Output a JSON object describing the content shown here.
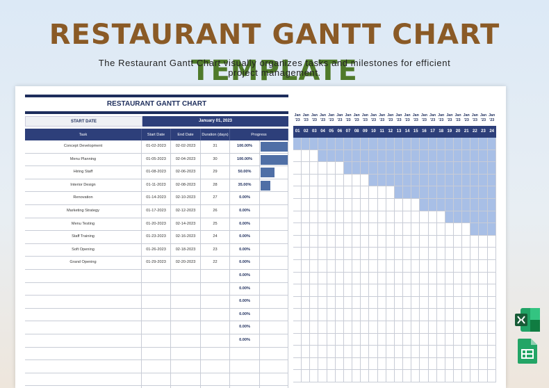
{
  "page": {
    "title_part1": "RESTAURANT GANTT CHART",
    "title_part2": "TEMPLATE",
    "subtitle": "The Restaurant Gantt Chart visually organizes tasks and milestones for efficient project management."
  },
  "sheet": {
    "title": "RESTAURANT GANTT CHART",
    "start_label": "START DATE",
    "start_value": "January 01, 2023",
    "headers": {
      "task": "Task",
      "start": "Start Date",
      "end": "End Date",
      "duration": "Duration (days)",
      "progress": "Progress"
    },
    "tasks": [
      {
        "task": "Concept Development",
        "start": "01-02-2023",
        "end": "02-02-2023",
        "duration": "31",
        "progress": "100.00%",
        "value": 1.0,
        "gantt_start": 1,
        "gantt_end": 24
      },
      {
        "task": "Menu Planning",
        "start": "01-05-2023",
        "end": "02-04-2023",
        "duration": "30",
        "progress": "100.00%",
        "value": 1.0,
        "gantt_start": 4,
        "gantt_end": 24
      },
      {
        "task": "Hiring Staff",
        "start": "01-08-2023",
        "end": "02-06-2023",
        "duration": "29",
        "progress": "50.00%",
        "value": 0.5,
        "gantt_start": 7,
        "gantt_end": 24
      },
      {
        "task": "Interior Design",
        "start": "01-11-2023",
        "end": "02-08-2023",
        "duration": "28",
        "progress": "35.00%",
        "value": 0.35,
        "gantt_start": 10,
        "gantt_end": 24
      },
      {
        "task": "Renovation",
        "start": "01-14-2023",
        "end": "02-10-2023",
        "duration": "27",
        "progress": "0.00%",
        "value": 0,
        "gantt_start": 13,
        "gantt_end": 24
      },
      {
        "task": "Marketing Strategy",
        "start": "01-17-2023",
        "end": "02-12-2023",
        "duration": "26",
        "progress": "0.00%",
        "value": 0,
        "gantt_start": 16,
        "gantt_end": 24
      },
      {
        "task": "Menu Testing",
        "start": "01-20-2023",
        "end": "02-14-2023",
        "duration": "25",
        "progress": "0.00%",
        "value": 0,
        "gantt_start": 19,
        "gantt_end": 24
      },
      {
        "task": "Staff Training",
        "start": "01-23-2023",
        "end": "02-16-2023",
        "duration": "24",
        "progress": "0.00%",
        "value": 0,
        "gantt_start": 22,
        "gantt_end": 24
      },
      {
        "task": "Soft Opening",
        "start": "01-26-2023",
        "end": "02-18-2023",
        "duration": "23",
        "progress": "0.00%",
        "value": 0,
        "gantt_start": 25,
        "gantt_end": 24
      },
      {
        "task": "Grand Opening",
        "start": "01-29-2023",
        "end": "02-20-2023",
        "duration": "22",
        "progress": "0.00%",
        "value": 0,
        "gantt_start": 28,
        "gantt_end": 24
      },
      {
        "task": "",
        "start": "",
        "end": "",
        "duration": "",
        "progress": "0.00%",
        "value": 0,
        "gantt_start": 0,
        "gantt_end": 0
      },
      {
        "task": "",
        "start": "",
        "end": "",
        "duration": "",
        "progress": "0.00%",
        "value": 0,
        "gantt_start": 0,
        "gantt_end": 0
      },
      {
        "task": "",
        "start": "",
        "end": "",
        "duration": "",
        "progress": "0.00%",
        "value": 0,
        "gantt_start": 0,
        "gantt_end": 0
      },
      {
        "task": "",
        "start": "",
        "end": "",
        "duration": "",
        "progress": "0.00%",
        "value": 0,
        "gantt_start": 0,
        "gantt_end": 0
      },
      {
        "task": "",
        "start": "",
        "end": "",
        "duration": "",
        "progress": "0.00%",
        "value": 0,
        "gantt_start": 0,
        "gantt_end": 0
      },
      {
        "task": "",
        "start": "",
        "end": "",
        "duration": "",
        "progress": "0.00%",
        "value": 0,
        "gantt_start": 0,
        "gantt_end": 0
      },
      {
        "task": "",
        "start": "",
        "end": "",
        "duration": "",
        "progress": "",
        "value": 0,
        "gantt_start": 0,
        "gantt_end": 0
      },
      {
        "task": "",
        "start": "",
        "end": "",
        "duration": "",
        "progress": "",
        "value": 0,
        "gantt_start": 0,
        "gantt_end": 0
      },
      {
        "task": "",
        "start": "",
        "end": "",
        "duration": "",
        "progress": "",
        "value": 0,
        "gantt_start": 0,
        "gantt_end": 0
      },
      {
        "task": "",
        "start": "",
        "end": "",
        "duration": "",
        "progress": "",
        "value": 0,
        "gantt_start": 0,
        "gantt_end": 0
      }
    ],
    "gantt_month": "Jan",
    "gantt_year": "'23",
    "gantt_days": [
      "01",
      "02",
      "03",
      "04",
      "05",
      "06",
      "07",
      "08",
      "09",
      "10",
      "11",
      "12",
      "13",
      "14",
      "15",
      "16",
      "17",
      "18",
      "19",
      "20",
      "21",
      "22",
      "23",
      "24"
    ]
  },
  "colors": {
    "navy": "#2d3f7a",
    "bar": "#4f6fa6",
    "gantt_fill": "#a8bfe6"
  },
  "icons": [
    "excel-icon",
    "google-sheets-icon"
  ]
}
